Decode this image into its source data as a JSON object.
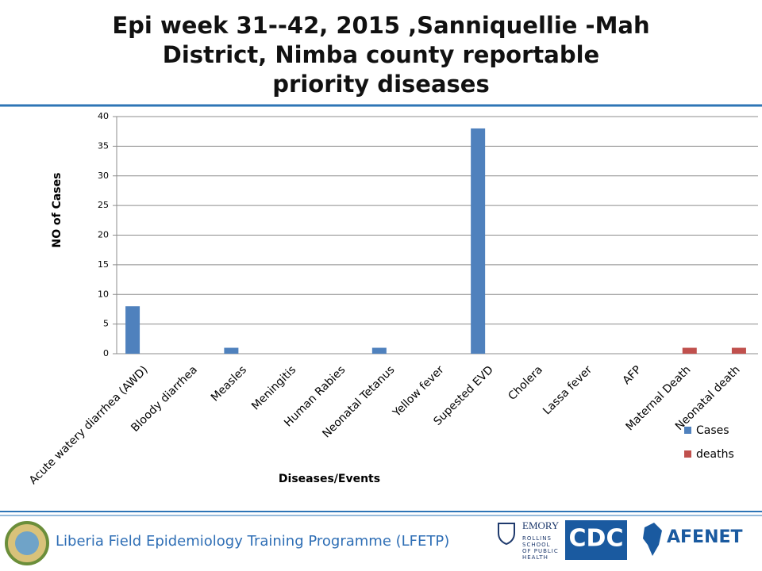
{
  "chart_data": {
    "type": "bar",
    "title": "Epi week  31--42, 2015 ,Sanniquellie -Mah District, Nimba county reportable priority diseases",
    "x_label": "Diseases/Events",
    "y_label": "NO of  Cases",
    "categories": [
      "Acute watery diarrhea (AWD)",
      "Bloody diarrhea",
      "Measles",
      "Meningitis",
      "Human Rabies",
      "Neonatal Tetanus",
      "Yellow fever",
      "Supested EVD",
      "Cholera",
      "Lassa fever",
      "AFP",
      "Maternal Death",
      "Neonatal death"
    ],
    "series": [
      {
        "name": "Cases",
        "color": "#4f81bd",
        "values": [
          8,
          0,
          1,
          0,
          0,
          1,
          0,
          38,
          0,
          0,
          0,
          0,
          0
        ]
      },
      {
        "name": "deaths",
        "color": "#c0504d",
        "values": [
          0,
          0,
          0,
          0,
          0,
          0,
          0,
          0,
          0,
          0,
          0,
          1,
          1
        ]
      }
    ],
    "ylim": [
      0,
      40
    ],
    "yticks": [
      0,
      5,
      10,
      15,
      20,
      25,
      30,
      35,
      40
    ],
    "grid": true,
    "legend": "bottom-right"
  },
  "footer": {
    "text": "Liberia Field Epidemiology Training Programme (LFETP)",
    "logos": [
      "EMORY",
      "ROLLINS SCHOOL OF PUBLIC HEALTH",
      "CDC",
      "AFENET"
    ]
  }
}
